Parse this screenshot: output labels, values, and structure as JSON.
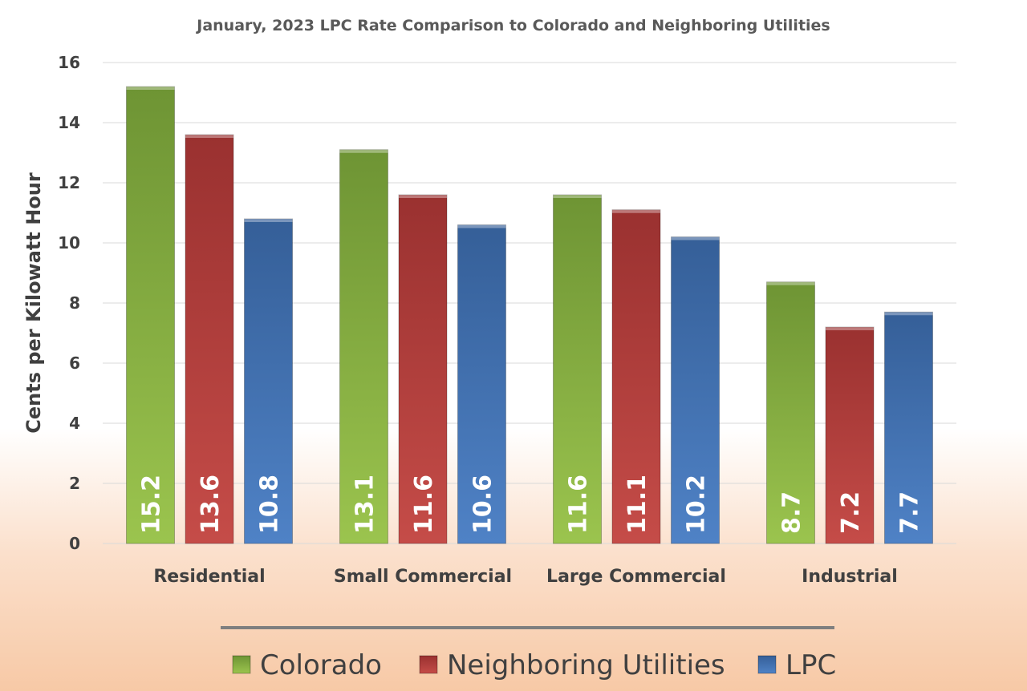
{
  "chart_data": {
    "type": "bar",
    "title": "January, 2023 LPC Rate Comparison to Colorado and  Neighboring Utilities",
    "ylabel": "Cents per Kilowatt Hour",
    "xlabel": "",
    "ylim": [
      0,
      16
    ],
    "yticks": [
      "0",
      "2",
      "4",
      "6",
      "8",
      "10",
      "12",
      "14",
      "16"
    ],
    "grid": true,
    "legend_position": "bottom",
    "categories": [
      "Residential",
      "Small Commercial",
      "Large Commercial",
      "Industrial"
    ],
    "series": [
      {
        "name": "Colorado",
        "color": "#77a13a",
        "values": [
          15.2,
          13.1,
          11.6,
          8.7
        ],
        "labels": [
          "15.2",
          "13.1",
          "11.6",
          "8.7"
        ]
      },
      {
        "name": "Neighboring Utilities",
        "color": "#b23b39",
        "values": [
          13.6,
          11.6,
          11.1,
          7.2
        ],
        "labels": [
          "13.6",
          "11.6",
          "11.1",
          "7.2"
        ]
      },
      {
        "name": "LPC",
        "color": "#3f6fb0",
        "values": [
          10.8,
          10.6,
          10.2,
          7.7
        ],
        "labels": [
          "10.8",
          "10.6",
          "10.2",
          "7.7"
        ]
      }
    ]
  }
}
